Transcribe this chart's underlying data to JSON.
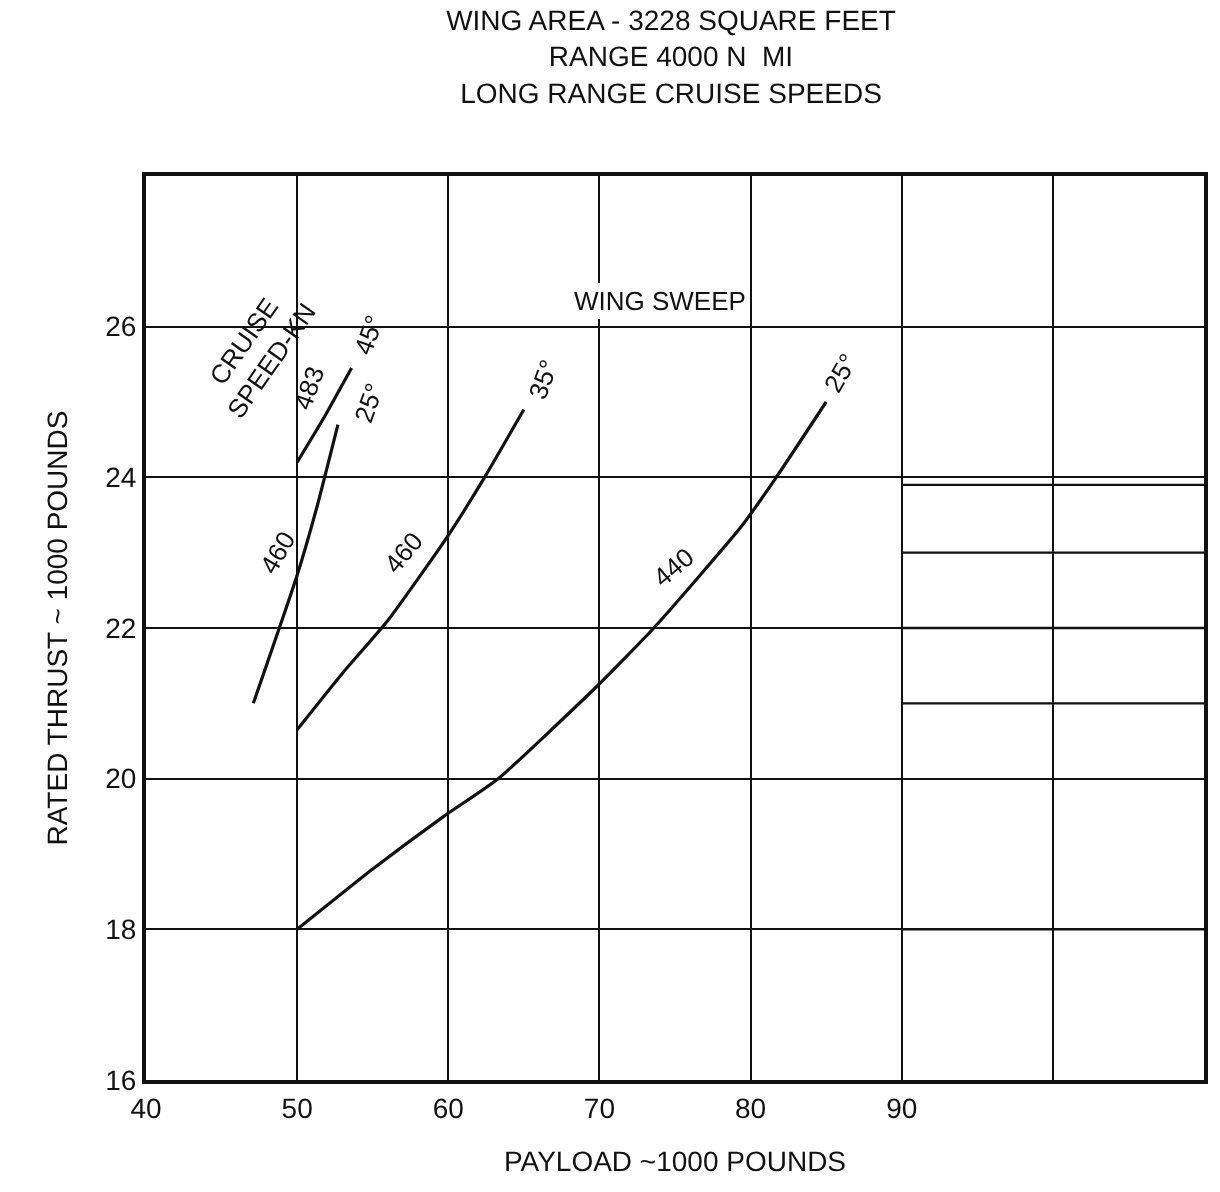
{
  "chart_data": {
    "type": "line",
    "title": "WING AREA - 3228 SQUARE FEET\nRANGE 4000 N  MI\nLONG RANGE CRUISE SPEEDS",
    "xlabel": "PAYLOAD ~1000 POUNDS",
    "ylabel": "RATED THRUST ~ 1000 POUNDS",
    "xlim": [
      40,
      110
    ],
    "xticks": [
      40,
      50,
      60,
      70,
      80,
      90,
      {
        "value": 100,
        "label": null
      }
    ],
    "ylim": [
      16,
      28
    ],
    "yticks": [
      16,
      18,
      20,
      22,
      24,
      26
    ],
    "grid": true,
    "marker": "none",
    "line_style": "solid",
    "series": [
      {
        "color": "#111111",
        "x": [
          50,
          51.8,
          53.6
        ],
        "values": [
          24.2,
          24.8,
          25.45
        ]
      },
      {
        "color": "#111111",
        "x": [
          47.1,
          50,
          51.3,
          52.7
        ],
        "values": [
          21.0,
          22.7,
          23.6,
          24.7
        ]
      },
      {
        "color": "#111111",
        "x": [
          50,
          53,
          56,
          59.9,
          62.4,
          65.0
        ],
        "values": [
          20.65,
          21.4,
          22.1,
          23.2,
          24.0,
          24.9
        ]
      },
      {
        "color": "#111111",
        "x": [
          50,
          55,
          59.7,
          63.3,
          69.7,
          73.6,
          79.4,
          81.7,
          85.0
        ],
        "values": [
          18.0,
          18.8,
          19.5,
          20.0,
          21.2,
          22.0,
          23.35,
          24.0,
          25.0
        ]
      }
    ],
    "ref_lines": [
      {
        "axis": "y",
        "value": 23.9
      },
      {
        "axis": "y",
        "value": 23.0
      },
      {
        "axis": "y",
        "value": 22.0
      },
      {
        "axis": "y",
        "value": 21.0
      },
      {
        "axis": "y",
        "value": 18.0
      }
    ],
    "annotations": [
      "WING SWEEP",
      "CRUISE\nSPEED-KN",
      "483",
      "45°",
      "25°",
      "460",
      "460",
      "35°",
      "440",
      "25°"
    ]
  }
}
